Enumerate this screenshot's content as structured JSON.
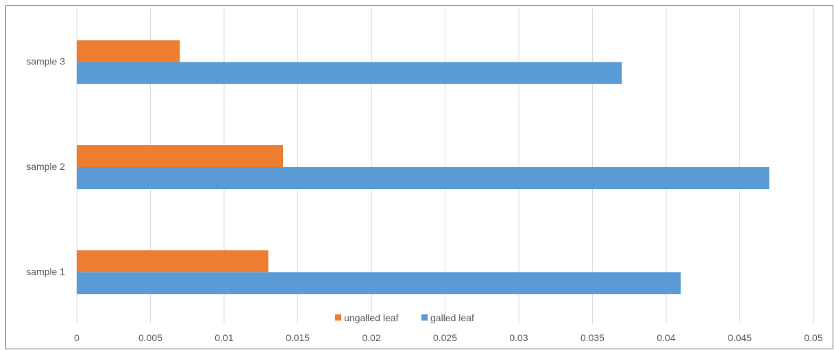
{
  "chart_data": {
    "type": "bar",
    "orientation": "horizontal",
    "title": "",
    "xlabel": "",
    "ylabel": "",
    "categories": [
      "sample 1",
      "sample 2",
      "sample 3"
    ],
    "series": [
      {
        "name": "galled leaf",
        "color": "#5b9bd5",
        "values": [
          0.041,
          0.047,
          0.037
        ]
      },
      {
        "name": "ungalled leaf",
        "color": "#ed7d31",
        "values": [
          0.013,
          0.014,
          0.007
        ]
      }
    ],
    "xlim": [
      0,
      0.05
    ],
    "xticks": [
      "0",
      "0.005",
      "0.01",
      "0.015",
      "0.02",
      "0.025",
      "0.03",
      "0.035",
      "0.04",
      "0.045",
      "0.05"
    ],
    "grid": true,
    "legend_position": "bottom",
    "legend": [
      "ungalled leaf",
      "galled leaf"
    ]
  }
}
